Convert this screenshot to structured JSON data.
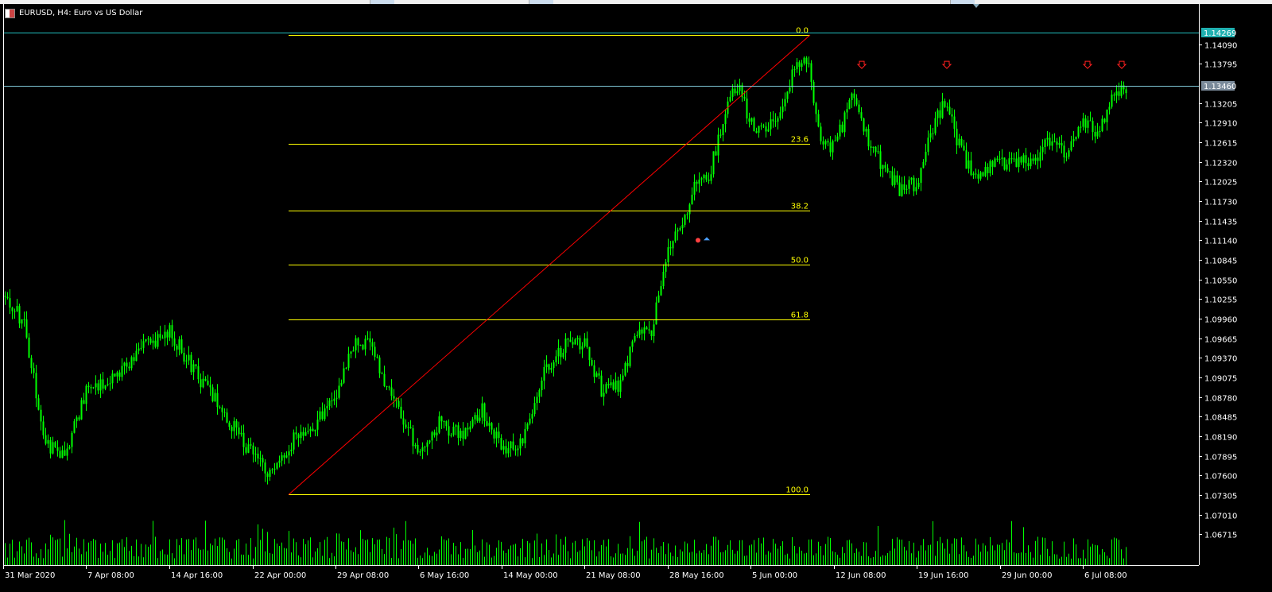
{
  "window": {
    "title": "EURUSD, H4:  Euro vs US Dollar",
    "symbol_icon": "chart-window-icon"
  },
  "colors": {
    "background": "#000000",
    "candle": "#00ff00",
    "volume": "#00ff00",
    "fib": "#ffff00",
    "trend": "#ff0000",
    "hline": "#80c8d8",
    "axis": "#ffffff",
    "arrow": "#ff2020"
  },
  "price_axis": {
    "ticks": [
      "1.14090",
      "1.13795",
      "1.13205",
      "1.12910",
      "1.12615",
      "1.12320",
      "1.12025",
      "1.11730",
      "1.11435",
      "1.11140",
      "1.10845",
      "1.10550",
      "1.10255",
      "1.09960",
      "1.09665",
      "1.09370",
      "1.09075",
      "1.08780",
      "1.08485",
      "1.08190",
      "1.07895",
      "1.07600",
      "1.07305",
      "1.07010",
      "1.06715"
    ],
    "current_price": "1.13460",
    "hline_price": "1.14269"
  },
  "time_axis": {
    "ticks": [
      "31 Mar 2020",
      "7 Apr 08:00",
      "14 Apr 16:00",
      "22 Apr 00:00",
      "29 Apr 08:00",
      "6 May 16:00",
      "14 May 00:00",
      "21 May 08:00",
      "28 May 16:00",
      "5 Jun 00:00",
      "12 Jun 08:00",
      "19 Jun 16:00",
      "29 Jun 00:00",
      "6 Jul 08:00"
    ]
  },
  "fibonacci": {
    "levels": [
      "0.0",
      "23.6",
      "38.2",
      "50.0",
      "61.8",
      "100.0"
    ],
    "high_price": 1.1423,
    "low_price": 1.0731
  },
  "chart_data": {
    "type": "candlestick",
    "symbol": "EURUSD",
    "timeframe": "H4",
    "ylim": [
      1.0655,
      1.1438
    ],
    "anchors": [
      [
        "31 Mar 2020",
        1.103
      ],
      [
        "1 Apr",
        1.099
      ],
      [
        "3 Apr",
        1.081
      ],
      [
        "6 Apr",
        1.079
      ],
      [
        "7 Apr 08:00",
        1.089
      ],
      [
        "9 Apr",
        1.091
      ],
      [
        "10 Apr",
        1.095
      ],
      [
        "14 Apr 16:00",
        1.0975
      ],
      [
        "16 Apr",
        1.088
      ],
      [
        "22 Apr 00:00",
        1.079
      ],
      [
        "23 Apr",
        1.076
      ],
      [
        "24 Apr",
        1.082
      ],
      [
        "27 Apr",
        1.084
      ],
      [
        "29 Apr 08:00",
        1.088
      ],
      [
        "30 Apr",
        1.096
      ],
      [
        "1 May",
        1.096
      ],
      [
        "4 May",
        1.09
      ],
      [
        "5 May",
        1.084
      ],
      [
        "6 May 16:00",
        1.08
      ],
      [
        "8 May",
        1.084
      ],
      [
        "11 May",
        1.082
      ],
      [
        "12 May",
        1.086
      ],
      [
        "14 May 00:00",
        1.08
      ],
      [
        "15 May",
        1.081
      ],
      [
        "18 May",
        1.0915
      ],
      [
        "19 May",
        1.0955
      ],
      [
        "21 May 08:00",
        1.096
      ],
      [
        "22 May",
        1.089
      ],
      [
        "25 May",
        1.0895
      ],
      [
        "26 May",
        1.0965
      ],
      [
        "27 May",
        1.098
      ],
      [
        "28 May 16:00",
        1.11
      ],
      [
        "29 May",
        1.113
      ],
      [
        "1 Jun",
        1.12
      ],
      [
        "2 Jun",
        1.121
      ],
      [
        "3 Jun",
        1.13
      ],
      [
        "4 Jun",
        1.135
      ],
      [
        "5 Jun 00:00",
        1.129
      ],
      [
        "6 Jun",
        1.128
      ],
      [
        "8 Jun",
        1.13
      ],
      [
        "9 Jun",
        1.137
      ],
      [
        "10 Jun",
        1.139
      ],
      [
        "11 Jun",
        1.127
      ],
      [
        "12 Jun 08:00",
        1.125
      ],
      [
        "12 Jun",
        1.133
      ],
      [
        "15 Jun",
        1.127
      ],
      [
        "16 Jun",
        1.122
      ],
      [
        "17 Jun",
        1.119
      ],
      [
        "19 Jun 16:00",
        1.12
      ],
      [
        "22 Jun",
        1.128
      ],
      [
        "23 Jun",
        1.132
      ],
      [
        "24 Jun",
        1.126
      ],
      [
        "25 Jun",
        1.121
      ],
      [
        "26 Jun",
        1.122
      ],
      [
        "29 Jun 00:00",
        1.123
      ],
      [
        "30 Jun",
        1.123
      ],
      [
        "1 Jul",
        1.124
      ],
      [
        "2 Jul",
        1.126
      ],
      [
        "3 Jul",
        1.124
      ],
      [
        "6 Jul 08:00",
        1.13
      ],
      [
        "7 Jul",
        1.127
      ],
      [
        "8 Jul",
        1.133
      ],
      [
        "9 Jul",
        1.1346
      ]
    ],
    "volatility": 0.0015
  }
}
